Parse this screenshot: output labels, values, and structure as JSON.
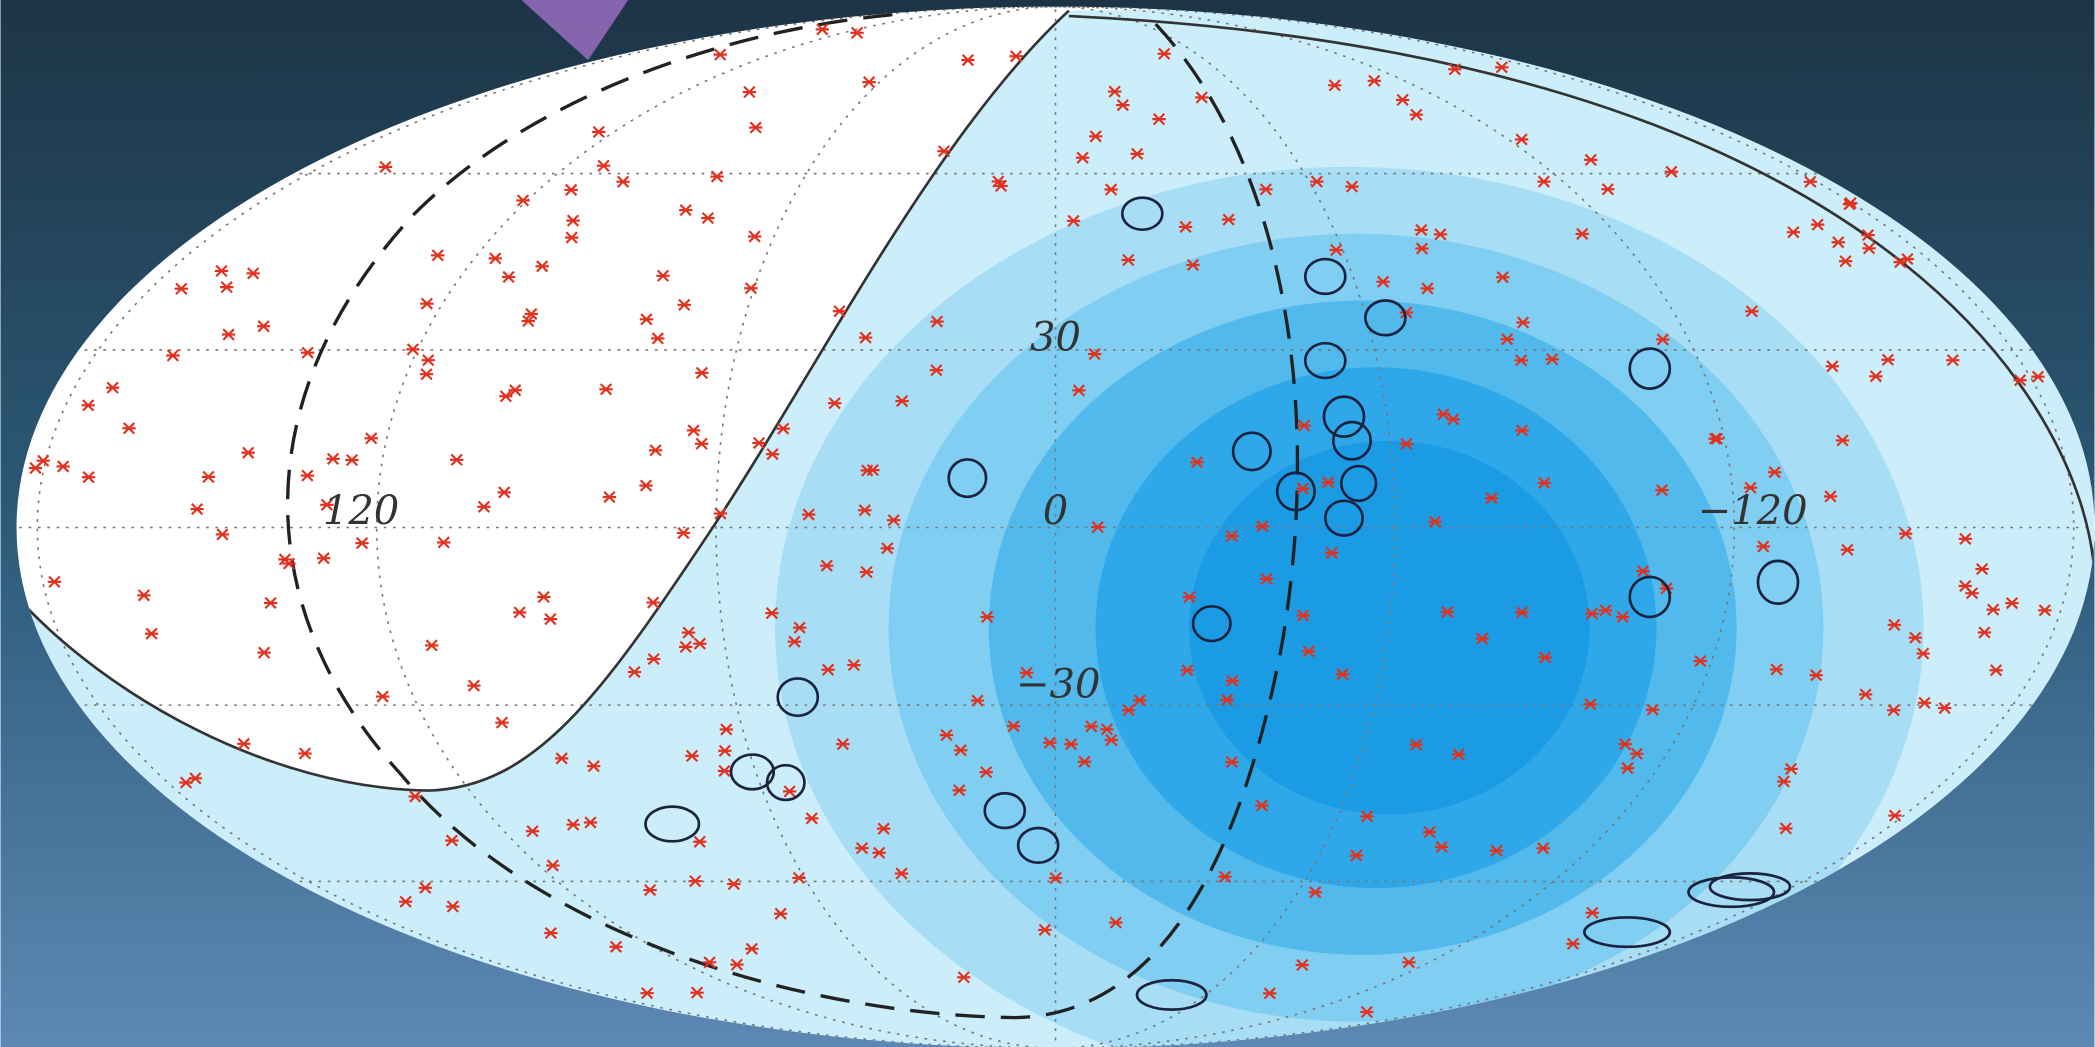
{
  "grid_labels": {
    "longitude": [
      "120",
      "0",
      "−120"
    ],
    "latitude": [
      "30",
      "−30"
    ]
  }
}
